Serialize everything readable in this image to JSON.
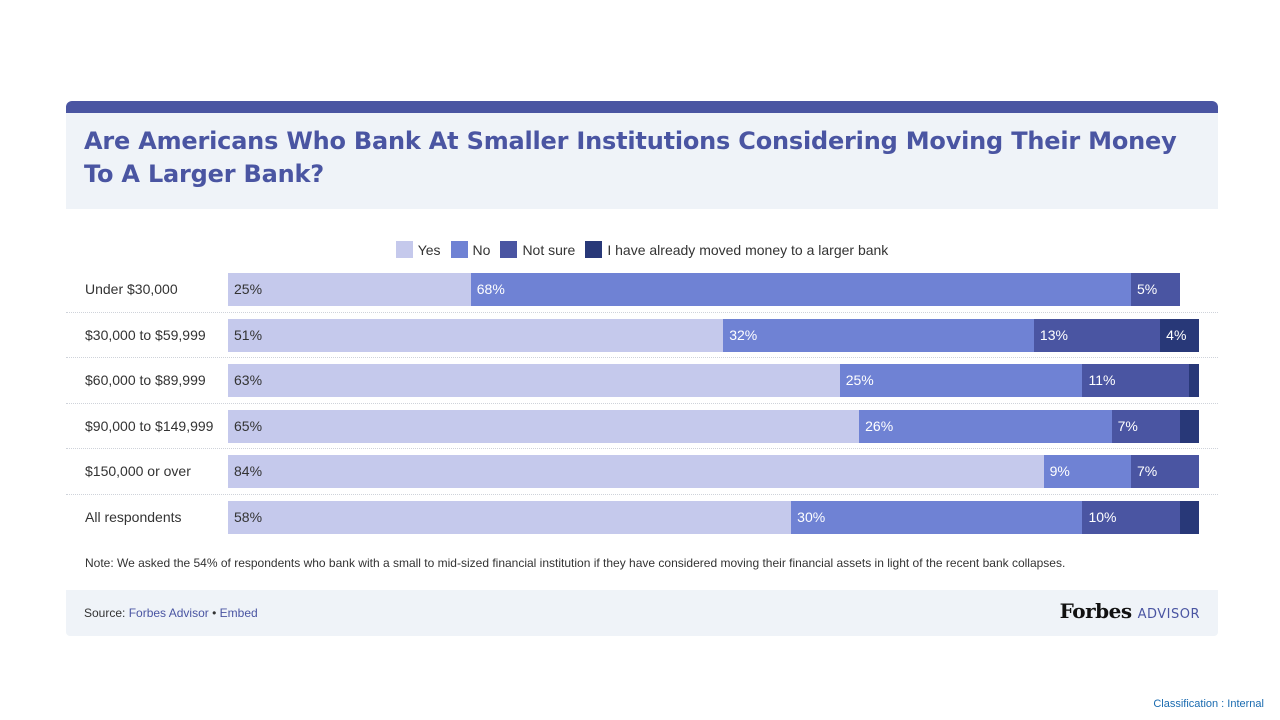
{
  "title": "Are Americans Who Bank At Smaller Institutions Considering Moving Their Money To A Larger Bank?",
  "colors": {
    "accent": "#4a55a2",
    "yes": "#c5c9ec",
    "no": "#6f82d4",
    "not_sure": "#4a55a2",
    "moved": "#283878",
    "panel": "#eff3f8"
  },
  "chart_data": {
    "type": "bar",
    "orientation": "horizontal",
    "stacked": true,
    "title": "Are Americans Who Bank At Smaller Institutions Considering Moving Their Money To A Larger Bank?",
    "legend_position": "top-center",
    "categories": [
      "Under $30,000",
      "$30,000 to $59,999",
      "$60,000 to $89,999",
      "$90,000 to $149,999",
      "$150,000 or over",
      "All respondents"
    ],
    "series": [
      {
        "name": "Yes",
        "values": [
          25,
          51,
          63,
          65,
          84,
          58
        ],
        "labels": [
          "25%",
          "51%",
          "63%",
          "65%",
          "84%",
          "58%"
        ]
      },
      {
        "name": "No",
        "values": [
          68,
          32,
          25,
          26,
          9,
          30
        ],
        "labels": [
          "68%",
          "32%",
          "25%",
          "26%",
          "9%",
          "30%"
        ]
      },
      {
        "name": "Not sure",
        "values": [
          5,
          13,
          11,
          7,
          7,
          10
        ],
        "labels": [
          "5%",
          "13%",
          "11%",
          "7%",
          "7%",
          "10%"
        ]
      },
      {
        "name": "I have already moved money to a larger bank",
        "values": [
          0,
          4,
          1,
          2,
          0,
          2
        ],
        "labels": [
          "",
          "4%",
          "",
          "",
          "",
          ""
        ]
      }
    ],
    "xlim": [
      0,
      100
    ]
  },
  "note": "Note: We asked the 54% of respondents who bank with a small to mid-sized financial institution if they have considered moving their financial assets in light of the recent bank collapses.",
  "footer": {
    "source_label": "Source:",
    "source_name": "Forbes Advisor",
    "separator": "•",
    "embed": "Embed",
    "logo_forbes": "Forbes",
    "logo_advisor": "ADVISOR"
  },
  "classification": "Classification : Internal"
}
